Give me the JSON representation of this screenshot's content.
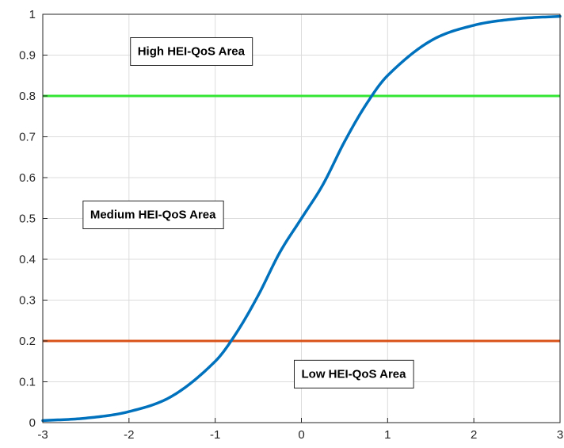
{
  "chart_data": {
    "type": "line",
    "title": "",
    "xlabel": "",
    "ylabel": "",
    "xlim": [
      -3,
      3
    ],
    "ylim": [
      0,
      1
    ],
    "grid": true,
    "x_ticks": [
      "-3",
      "-2",
      "-1",
      "0",
      "1",
      "2",
      "3"
    ],
    "y_ticks": [
      "0",
      "0.1",
      "0.2",
      "0.3",
      "0.4",
      "0.5",
      "0.6",
      "0.7",
      "0.8",
      "0.9",
      "1"
    ],
    "series": [
      {
        "color": "#0072BD",
        "x": [
          -3,
          -2.5,
          -2,
          -1.5,
          -1,
          -0.75,
          -0.5,
          -0.25,
          0,
          0.25,
          0.5,
          0.75,
          1,
          1.5,
          2,
          2.5,
          3
        ],
        "y": [
          0.005,
          0.011,
          0.027,
          0.065,
          0.15,
          0.221,
          0.312,
          0.417,
          0.5,
          0.583,
          0.688,
          0.779,
          0.85,
          0.935,
          0.973,
          0.989,
          0.995
        ]
      }
    ],
    "thresholds": [
      {
        "y": 0.8,
        "color": "#33E633"
      },
      {
        "y": 0.2,
        "color": "#D95319"
      }
    ],
    "annotations": [
      {
        "text": "High HEI-QoS Area",
        "x": -1.9,
        "y": 0.9
      },
      {
        "text": "Medium HEI-QoS Area",
        "x": -2.45,
        "y": 0.5
      },
      {
        "text": "Low HEI-QoS Area",
        "x": 0.0,
        "y": 0.11
      }
    ]
  }
}
